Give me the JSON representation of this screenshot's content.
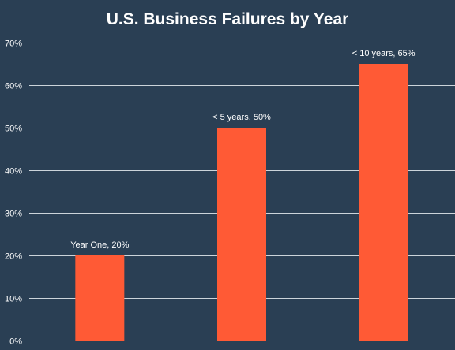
{
  "chart_data": {
    "type": "bar",
    "title": "U.S. Business Failures by Year",
    "categories": [
      "Year One",
      "< 5 years",
      "< 10 years"
    ],
    "values": [
      20,
      50,
      65
    ],
    "data_labels": [
      "Year One, 20%",
      "< 5 years, 50%",
      "< 10 years, 65%"
    ],
    "ylim": [
      0,
      70
    ],
    "yticks": [
      0,
      10,
      20,
      30,
      40,
      50,
      60,
      70
    ],
    "ytick_labels": [
      "0%",
      "10%",
      "20%",
      "30%",
      "40%",
      "50%",
      "60%",
      "70%"
    ],
    "xlabel": "",
    "ylabel": "",
    "grid": true,
    "legend": "none",
    "colors": {
      "background": "#2a3f54",
      "bar": "#ff5a35",
      "text": "#ffffff",
      "grid": "#e9eef2"
    }
  }
}
